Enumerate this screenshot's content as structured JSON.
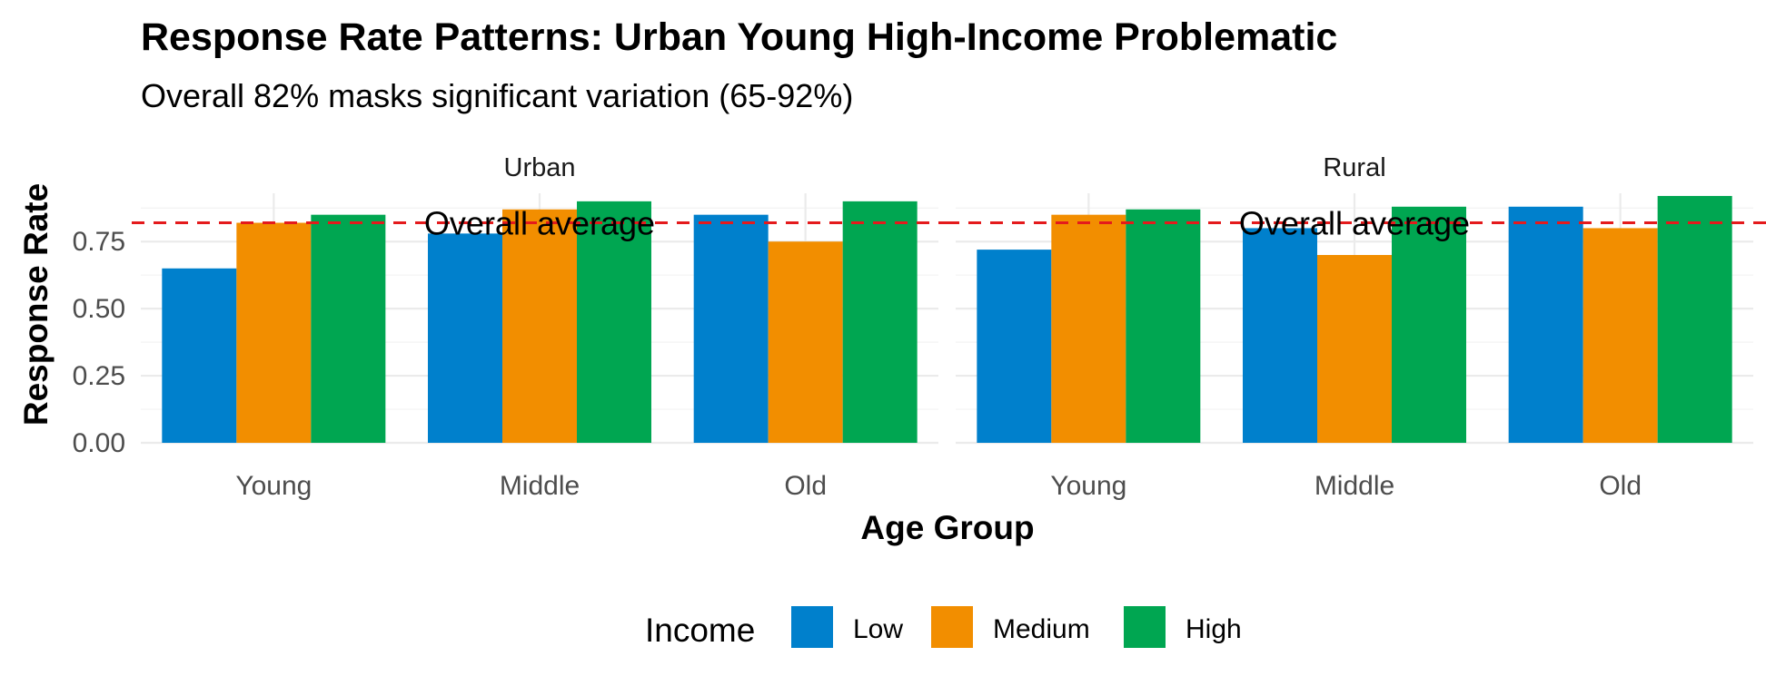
{
  "chart_data": {
    "type": "bar",
    "title": "Response Rate Patterns: Urban Young High-Income Problematic",
    "subtitle": "Overall 82% masks significant variation (65-92%)",
    "xlabel": "Age Group",
    "ylabel": "Response Rate",
    "ylim": [
      0,
      0.93
    ],
    "yticks": [
      "0.00",
      "0.25",
      "0.50",
      "0.75"
    ],
    "ytick_values": [
      0,
      0.25,
      0.5,
      0.75
    ],
    "categories": [
      "Young",
      "Middle",
      "Old"
    ],
    "facets": [
      {
        "label": "Urban",
        "series": [
          {
            "name": "Low",
            "values": [
              0.65,
              0.78,
              0.85
            ]
          },
          {
            "name": "Medium",
            "values": [
              0.82,
              0.87,
              0.75
            ]
          },
          {
            "name": "High",
            "values": [
              0.85,
              0.9,
              0.9
            ]
          }
        ]
      },
      {
        "label": "Rural",
        "series": [
          {
            "name": "Low",
            "values": [
              0.72,
              0.8,
              0.88
            ]
          },
          {
            "name": "Medium",
            "values": [
              0.85,
              0.7,
              0.8
            ]
          },
          {
            "name": "High",
            "values": [
              0.87,
              0.88,
              0.92
            ]
          }
        ]
      }
    ],
    "reference_line": {
      "value": 0.82,
      "label": "Overall average",
      "color": "#e41a1c"
    },
    "legend": {
      "title": "Income",
      "position": "bottom",
      "items": [
        {
          "name": "Low",
          "color": "#0080cc"
        },
        {
          "name": "Medium",
          "color": "#f28e00"
        },
        {
          "name": "High",
          "color": "#00a651"
        }
      ]
    },
    "grid": true
  }
}
